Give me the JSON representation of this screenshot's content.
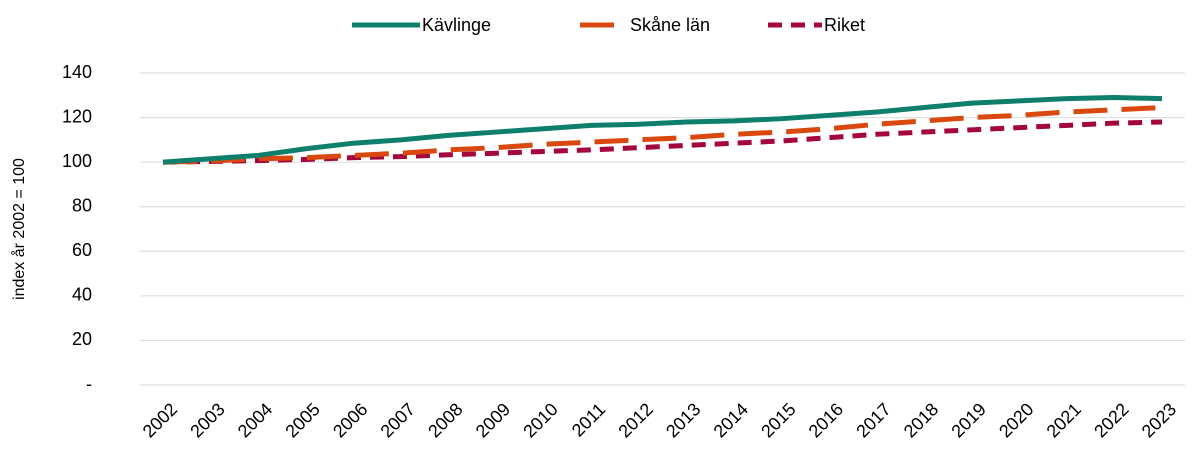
{
  "chart_data": {
    "type": "line",
    "y_label": "index år 2002 = 100",
    "categories": [
      "2002",
      "2003",
      "2004",
      "2005",
      "2006",
      "2007",
      "2008",
      "2009",
      "2010",
      "2011",
      "2012",
      "2013",
      "2014",
      "2015",
      "2016",
      "2017",
      "2018",
      "2019",
      "2020",
      "2021",
      "2022",
      "2023"
    ],
    "series": [
      {
        "name": "Kävlinge",
        "color": "#0e7f6b",
        "dash": "solid",
        "values": [
          100,
          101.5,
          103,
          106,
          108.5,
          110,
          112,
          113.5,
          115,
          116.5,
          117,
          118,
          118.5,
          119.5,
          121,
          122.5,
          124.5,
          126.5,
          127.5,
          128.5,
          129,
          128.5
        ]
      },
      {
        "name": "Skåne län",
        "color": "#d9480f",
        "dash": "long",
        "values": [
          100,
          100.5,
          101.5,
          102,
          103,
          104,
          105.5,
          106.5,
          108,
          109,
          110,
          111,
          112.5,
          113.5,
          115,
          117,
          118.5,
          120,
          121,
          122.5,
          123.5,
          124.5
        ]
      },
      {
        "name": "Riket",
        "color": "#a4073f",
        "dash": "short",
        "values": [
          100,
          100.3,
          100.7,
          101.2,
          102,
          102.5,
          103.3,
          104,
          104.8,
          105.5,
          106.5,
          107.5,
          108.5,
          109.5,
          111,
          112.5,
          113.5,
          114.5,
          115.5,
          116.5,
          117.5,
          118
        ]
      }
    ],
    "ylim": [
      0,
      140
    ],
    "yticks": [
      {
        "value": 0,
        "label": "-"
      },
      20,
      40,
      60,
      80,
      100,
      120,
      140
    ],
    "grid": true,
    "legend": "top"
  }
}
